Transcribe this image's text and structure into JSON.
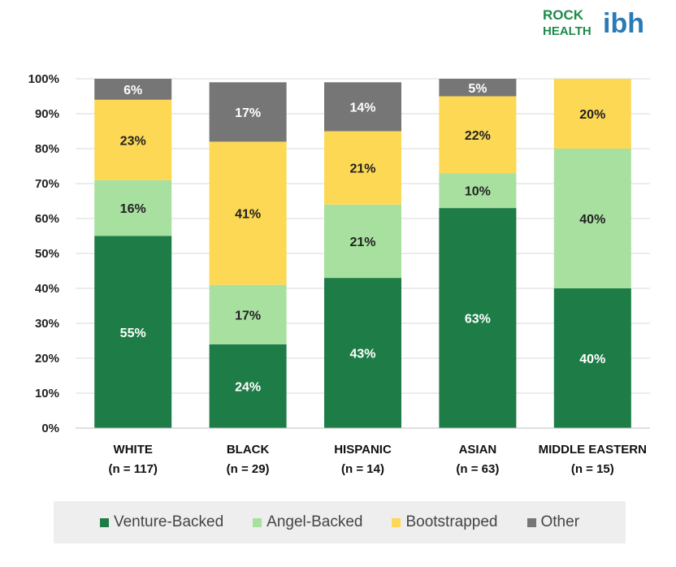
{
  "logo": {
    "rock": "ROCK",
    "health": "HEALTH",
    "mark": "ibh"
  },
  "colors": {
    "venture": "#1e7d47",
    "angel": "#a8e0a0",
    "boot": "#fcd855",
    "other": "#767676",
    "grid": "#d9d9d9",
    "logo_green": "#1e8a4a",
    "logo_blue": "#2a7ab8"
  },
  "chart_data": {
    "type": "bar",
    "stacked": true,
    "categories": [
      "WHITE",
      "BLACK",
      "HISPANIC",
      "ASIAN",
      "MIDDLE EASTERN"
    ],
    "category_sublabels": [
      "(n = 117)",
      "(n = 29)",
      "(n = 14)",
      "(n = 63)",
      "(n = 15)"
    ],
    "series": [
      {
        "name": "Venture-Backed",
        "values": [
          55,
          24,
          43,
          63,
          40
        ],
        "labels": [
          "55%",
          "24%",
          "43%",
          "63%",
          "40%"
        ]
      },
      {
        "name": "Angel-Backed",
        "values": [
          16,
          17,
          21,
          10,
          40
        ],
        "labels": [
          "16%",
          "17%",
          "21%",
          "10%",
          "40%"
        ]
      },
      {
        "name": "Bootstrapped",
        "values": [
          23,
          41,
          21,
          22,
          20
        ],
        "labels": [
          "23%",
          "41%",
          "21%",
          "22%",
          "20%"
        ]
      },
      {
        "name": "Other",
        "values": [
          6,
          17,
          14,
          5,
          0
        ],
        "labels": [
          "6%",
          "17%",
          "14%",
          "5%",
          ""
        ]
      }
    ],
    "yticks": [
      "0%",
      "10%",
      "20%",
      "30%",
      "40%",
      "50%",
      "60%",
      "70%",
      "80%",
      "90%",
      "100%"
    ],
    "ylim": [
      0,
      100
    ],
    "grid": true,
    "legend_position": "bottom"
  }
}
